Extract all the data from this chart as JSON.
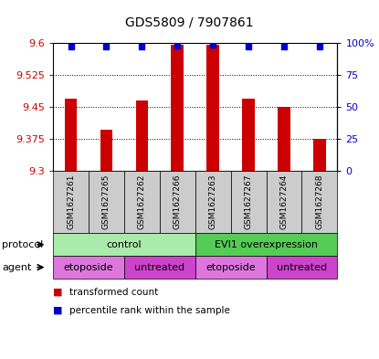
{
  "title": "GDS5809 / 7907861",
  "samples": [
    "GSM1627261",
    "GSM1627265",
    "GSM1627262",
    "GSM1627266",
    "GSM1627263",
    "GSM1627267",
    "GSM1627264",
    "GSM1627268"
  ],
  "bar_values": [
    9.47,
    9.395,
    9.465,
    9.595,
    9.595,
    9.47,
    9.45,
    9.375
  ],
  "percentile_values": [
    97,
    97,
    97,
    98,
    99,
    97,
    97,
    97
  ],
  "bar_base": 9.3,
  "ylim_left": [
    9.3,
    9.6
  ],
  "ylim_right": [
    0,
    100
  ],
  "yticks_left": [
    9.3,
    9.375,
    9.45,
    9.525,
    9.6
  ],
  "yticks_right": [
    0,
    25,
    50,
    75,
    100
  ],
  "bar_color": "#cc0000",
  "percentile_color": "#0000cc",
  "grid_color": "#000000",
  "protocol_groups": [
    {
      "label": "control",
      "start": 0,
      "end": 4,
      "color": "#aaeaaa"
    },
    {
      "label": "EVI1 overexpression",
      "start": 4,
      "end": 8,
      "color": "#55cc55"
    }
  ],
  "agent_groups": [
    {
      "label": "etoposide",
      "start": 0,
      "end": 2,
      "color": "#dd77dd"
    },
    {
      "label": "untreated",
      "start": 2,
      "end": 4,
      "color": "#cc44cc"
    },
    {
      "label": "etoposide",
      "start": 4,
      "end": 6,
      "color": "#dd77dd"
    },
    {
      "label": "untreated",
      "start": 6,
      "end": 8,
      "color": "#cc44cc"
    }
  ],
  "legend_red_label": "transformed count",
  "legend_blue_label": "percentile rank within the sample",
  "left_tick_color": "#cc0000",
  "right_tick_color": "#0000cc",
  "sample_area_color": "#cccccc"
}
